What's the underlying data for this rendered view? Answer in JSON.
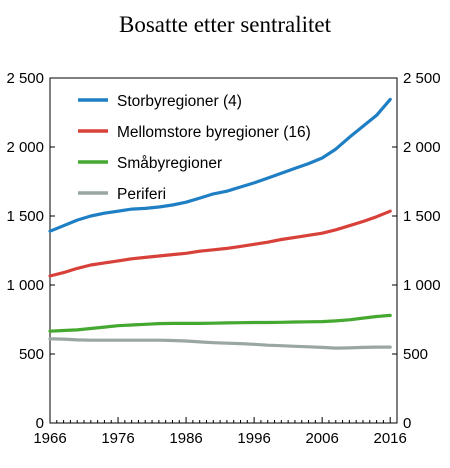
{
  "chart_data": {
    "type": "line",
    "title": "Bosatte etter sentralitet",
    "xlabel": "",
    "ylabel": "",
    "xlim": [
      1966,
      2017
    ],
    "ylim": [
      0,
      2500
    ],
    "x_ticks": [
      1966,
      1976,
      1986,
      1996,
      2006,
      2016
    ],
    "y_ticks": [
      0,
      500,
      1000,
      1500,
      2000,
      2500
    ],
    "y_tick_labels": [
      "0",
      "500",
      "1 000",
      "1 500",
      "2 000",
      "2 500"
    ],
    "grid": false,
    "legend_position": "top-left",
    "x": [
      1966,
      1968,
      1970,
      1972,
      1974,
      1976,
      1978,
      1980,
      1982,
      1984,
      1986,
      1988,
      1990,
      1992,
      1994,
      1996,
      1998,
      2000,
      2002,
      2004,
      2006,
      2008,
      2010,
      2012,
      2014,
      2016
    ],
    "series": [
      {
        "name": "Storbyregioner (4)",
        "color": "#1f7fc4",
        "values": [
          1390,
          1430,
          1470,
          1500,
          1520,
          1535,
          1550,
          1555,
          1565,
          1580,
          1600,
          1630,
          1660,
          1680,
          1710,
          1740,
          1775,
          1810,
          1845,
          1880,
          1920,
          1985,
          2070,
          2150,
          2230,
          2345
        ]
      },
      {
        "name": "Mellomstore byregioner (16)",
        "color": "#d8403a",
        "values": [
          1065,
          1090,
          1120,
          1145,
          1160,
          1175,
          1190,
          1200,
          1210,
          1220,
          1230,
          1245,
          1255,
          1265,
          1280,
          1295,
          1310,
          1330,
          1345,
          1360,
          1375,
          1400,
          1430,
          1460,
          1495,
          1535
        ]
      },
      {
        "name": "Småbyregioner",
        "color": "#45a830",
        "values": [
          665,
          670,
          675,
          685,
          695,
          705,
          710,
          715,
          720,
          722,
          722,
          722,
          723,
          725,
          727,
          728,
          728,
          730,
          732,
          733,
          735,
          740,
          748,
          760,
          772,
          780
        ]
      },
      {
        "name": "Periferi",
        "color": "#9aa6a2",
        "values": [
          610,
          608,
          602,
          600,
          600,
          600,
          600,
          600,
          600,
          598,
          594,
          588,
          582,
          578,
          575,
          570,
          564,
          560,
          556,
          552,
          548,
          543,
          544,
          548,
          550,
          550
        ]
      }
    ]
  }
}
